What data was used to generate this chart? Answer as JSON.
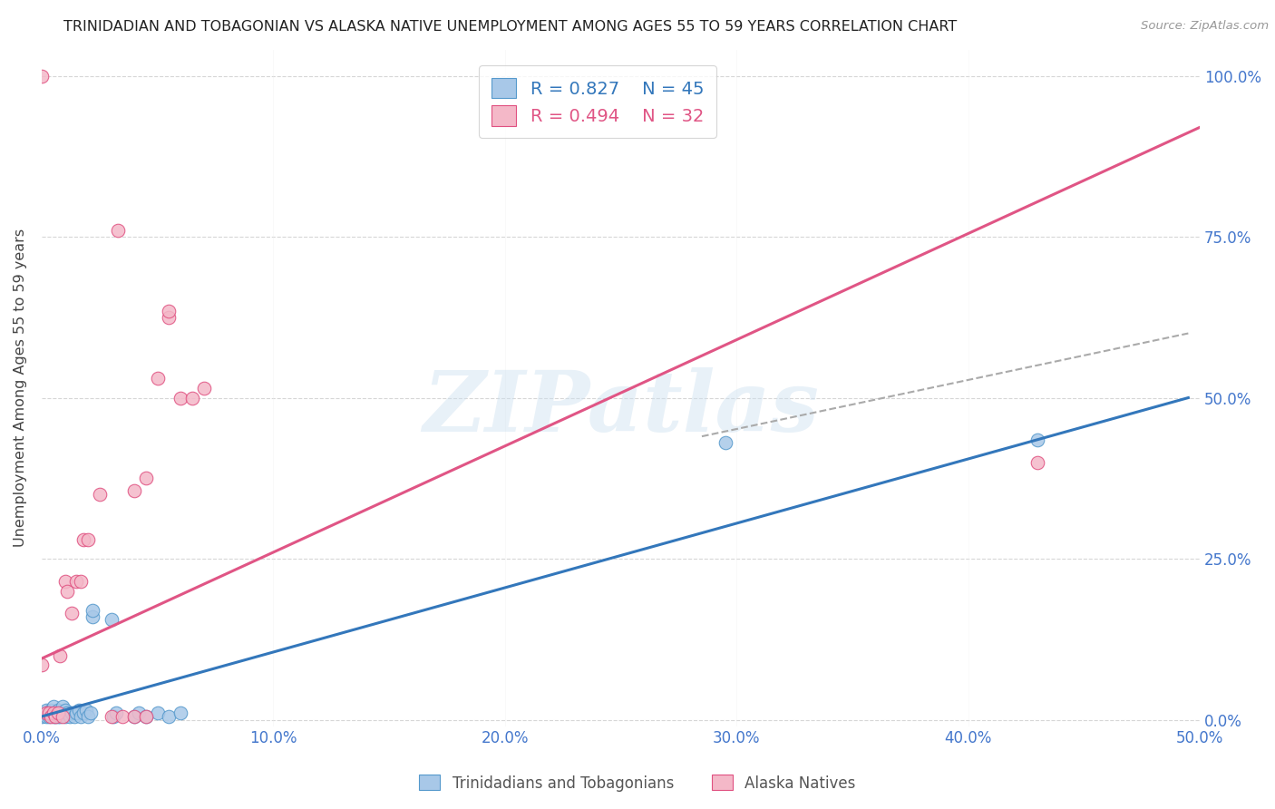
{
  "title": "TRINIDADIAN AND TOBAGONIAN VS ALASKA NATIVE UNEMPLOYMENT AMONG AGES 55 TO 59 YEARS CORRELATION CHART",
  "source": "Source: ZipAtlas.com",
  "ylabel": "Unemployment Among Ages 55 to 59 years",
  "xlabel_ticks": [
    "0.0%",
    "10.0%",
    "20.0%",
    "30.0%",
    "40.0%",
    "50.0%"
  ],
  "ylabel_ticks": [
    "0.0%",
    "25.0%",
    "50.0%",
    "75.0%",
    "100.0%"
  ],
  "xlim": [
    0.0,
    0.5
  ],
  "ylim": [
    -0.01,
    1.04
  ],
  "blue_R": 0.827,
  "blue_N": 45,
  "pink_R": 0.494,
  "pink_N": 32,
  "blue_color": "#a8c8e8",
  "pink_color": "#f4b8c8",
  "blue_edge_color": "#5599cc",
  "pink_edge_color": "#e05080",
  "blue_line_color": "#3377bb",
  "pink_line_color": "#e05585",
  "dashed_line_color": "#aaaaaa",
  "title_color": "#222222",
  "axis_label_color": "#4477cc",
  "blue_scatter": [
    [
      0.0,
      0.005
    ],
    [
      0.001,
      0.01
    ],
    [
      0.002,
      0.005
    ],
    [
      0.002,
      0.015
    ],
    [
      0.003,
      0.008
    ],
    [
      0.003,
      0.005
    ],
    [
      0.004,
      0.01
    ],
    [
      0.004,
      0.015
    ],
    [
      0.005,
      0.005
    ],
    [
      0.005,
      0.01
    ],
    [
      0.005,
      0.02
    ],
    [
      0.006,
      0.005
    ],
    [
      0.006,
      0.01
    ],
    [
      0.007,
      0.005
    ],
    [
      0.007,
      0.015
    ],
    [
      0.008,
      0.01
    ],
    [
      0.008,
      0.005
    ],
    [
      0.009,
      0.01
    ],
    [
      0.009,
      0.02
    ],
    [
      0.01,
      0.005
    ],
    [
      0.01,
      0.015
    ],
    [
      0.011,
      0.01
    ],
    [
      0.012,
      0.005
    ],
    [
      0.013,
      0.01
    ],
    [
      0.014,
      0.005
    ],
    [
      0.015,
      0.01
    ],
    [
      0.016,
      0.015
    ],
    [
      0.017,
      0.005
    ],
    [
      0.018,
      0.01
    ],
    [
      0.019,
      0.015
    ],
    [
      0.02,
      0.005
    ],
    [
      0.021,
      0.01
    ],
    [
      0.022,
      0.16
    ],
    [
      0.022,
      0.17
    ],
    [
      0.03,
      0.155
    ],
    [
      0.031,
      0.005
    ],
    [
      0.032,
      0.01
    ],
    [
      0.04,
      0.005
    ],
    [
      0.042,
      0.01
    ],
    [
      0.045,
      0.005
    ],
    [
      0.05,
      0.01
    ],
    [
      0.055,
      0.005
    ],
    [
      0.06,
      0.01
    ],
    [
      0.295,
      0.43
    ],
    [
      0.43,
      0.435
    ]
  ],
  "pink_scatter": [
    [
      0.0,
      0.085
    ],
    [
      0.002,
      0.01
    ],
    [
      0.003,
      0.01
    ],
    [
      0.004,
      0.005
    ],
    [
      0.005,
      0.01
    ],
    [
      0.006,
      0.005
    ],
    [
      0.007,
      0.01
    ],
    [
      0.008,
      0.1
    ],
    [
      0.009,
      0.005
    ],
    [
      0.01,
      0.215
    ],
    [
      0.011,
      0.2
    ],
    [
      0.013,
      0.165
    ],
    [
      0.015,
      0.215
    ],
    [
      0.017,
      0.215
    ],
    [
      0.018,
      0.28
    ],
    [
      0.02,
      0.28
    ],
    [
      0.025,
      0.35
    ],
    [
      0.03,
      0.005
    ],
    [
      0.035,
      0.005
    ],
    [
      0.04,
      0.355
    ],
    [
      0.04,
      0.005
    ],
    [
      0.045,
      0.375
    ],
    [
      0.045,
      0.005
    ],
    [
      0.05,
      0.53
    ],
    [
      0.055,
      0.625
    ],
    [
      0.06,
      0.5
    ],
    [
      0.065,
      0.5
    ],
    [
      0.07,
      0.515
    ],
    [
      0.0,
      1.0
    ],
    [
      0.033,
      0.76
    ],
    [
      0.055,
      0.635
    ],
    [
      0.43,
      0.4
    ]
  ],
  "blue_line_x": [
    0.0,
    0.495
  ],
  "blue_line_y": [
    0.005,
    0.5
  ],
  "pink_line_x": [
    0.0,
    0.5
  ],
  "pink_line_y": [
    0.095,
    0.92
  ],
  "dashed_line_x": [
    0.285,
    0.495
  ],
  "dashed_line_y": [
    0.44,
    0.6
  ],
  "watermark": "ZIPatlas",
  "grid_color": "#cccccc"
}
